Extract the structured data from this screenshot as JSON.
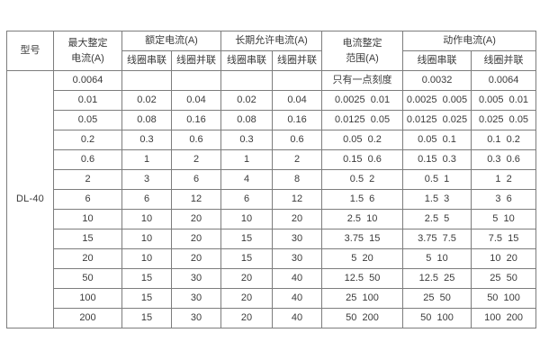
{
  "theme": {
    "background": "#ffffff",
    "border_color": "#7d7d7d",
    "text_color": "#3b3b3b"
  },
  "table": {
    "header": {
      "model": "型号",
      "max_setting_line1": "最大整定",
      "max_setting_line2": "电流(A)",
      "rated_current": "额定电流(A)",
      "long_term_current": "长期允许电流(A)",
      "setting_range_line1": "电流整定",
      "setting_range_line2": "范围(A)",
      "operating_current": "动作电流(A)",
      "coil_series": "线圈串联",
      "coil_parallel": "线圈并联"
    },
    "model_value": "DL-40",
    "rows": [
      [
        "0.0064",
        "",
        "",
        "",
        "",
        "只有一点刻度",
        "0.0032",
        "0.0064"
      ],
      [
        "0.01",
        "0.02",
        "0.04",
        "0.02",
        "0.04",
        "0.0025  0.01",
        "0.0025  0.005",
        "0.005  0.01"
      ],
      [
        "0.05",
        "0.08",
        "0.16",
        "0.08",
        "0.16",
        "0.0125  0.05",
        "0.0125  0.025",
        "0.025  0.05"
      ],
      [
        "0.2",
        "0.3",
        "0.6",
        "0.3",
        "0.6",
        "0.05  0.2",
        "0.05  0.1",
        "0.1  0.2"
      ],
      [
        "0.6",
        "1",
        "2",
        "1",
        "2",
        "0.15  0.6",
        "0.15  0.3",
        "0.3  0.6"
      ],
      [
        "2",
        "3",
        "6",
        "4",
        "8",
        "0.5  2",
        "0.5  1",
        "1  2"
      ],
      [
        "6",
        "6",
        "12",
        "6",
        "12",
        "1.5  6",
        "1.5  3",
        "3  6"
      ],
      [
        "10",
        "10",
        "20",
        "10",
        "20",
        "2.5  10",
        "2.5  5",
        "5  10"
      ],
      [
        "15",
        "10",
        "20",
        "15",
        "30",
        "3.75  15",
        "3.75  7.5",
        "7.5  15"
      ],
      [
        "20",
        "10",
        "20",
        "15",
        "30",
        "5  20",
        "5  10",
        "10  20"
      ],
      [
        "50",
        "15",
        "30",
        "20",
        "40",
        "12.5  50",
        "12.5  25",
        "25  50"
      ],
      [
        "100",
        "15",
        "30",
        "20",
        "40",
        "25  100",
        "25  50",
        "50  100"
      ],
      [
        "200",
        "15",
        "30",
        "20",
        "40",
        "50  200",
        "50  100",
        "100  200"
      ]
    ]
  }
}
